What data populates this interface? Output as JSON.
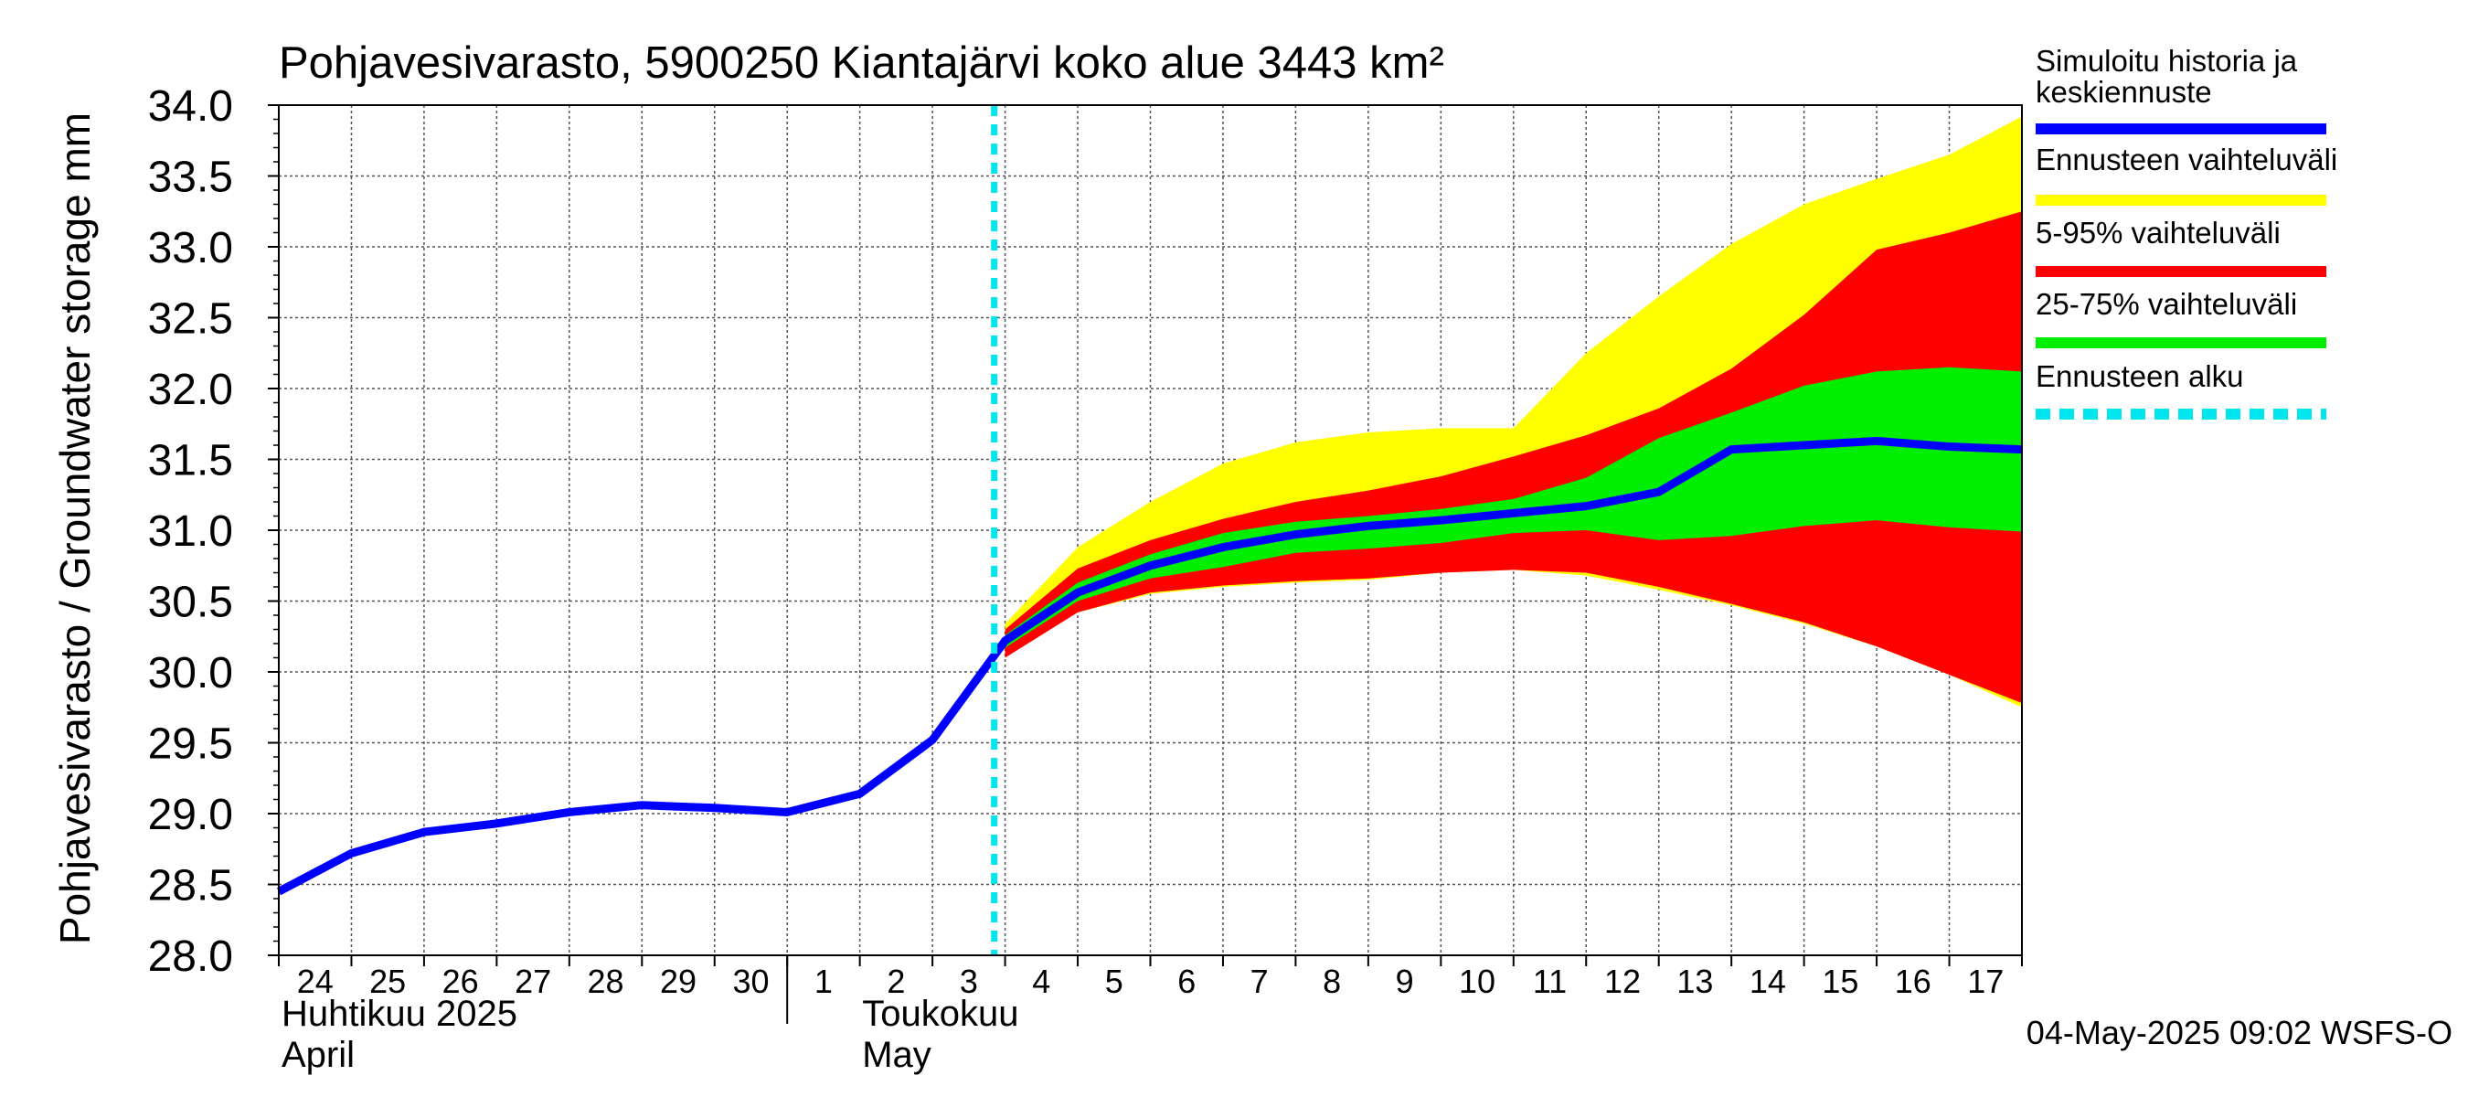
{
  "chart_data": {
    "type": "area",
    "title": "Pohjavesivarasto, 5900250 Kiantajärvi koko alue 3443 km²",
    "ylabel": "Pohjavesivarasto / Groundwater storage   mm",
    "ylim": [
      28.0,
      34.0
    ],
    "y_ticks": [
      "28.0",
      "28.5",
      "29.0",
      "29.5",
      "30.0",
      "30.5",
      "31.0",
      "31.5",
      "32.0",
      "32.5",
      "33.0",
      "33.5",
      "34.0"
    ],
    "grid": true,
    "x_day_labels": [
      "24",
      "25",
      "26",
      "27",
      "28",
      "29",
      "30",
      "1",
      "2",
      "3",
      "4",
      "5",
      "6",
      "7",
      "8",
      "9",
      "10",
      "11",
      "12",
      "13",
      "14",
      "15",
      "16",
      "17"
    ],
    "month_labels": [
      {
        "fi": "Huhtikuu  2025",
        "en": "April"
      },
      {
        "fi": "Toukokuu",
        "en": "May"
      }
    ],
    "x_dates": [
      "2025-04-24",
      "2025-04-25",
      "2025-04-26",
      "2025-04-27",
      "2025-04-28",
      "2025-04-29",
      "2025-04-30",
      "2025-05-01",
      "2025-05-02",
      "2025-05-03",
      "2025-05-04",
      "2025-05-05",
      "2025-05-06",
      "2025-05-07",
      "2025-05-08",
      "2025-05-09",
      "2025-05-10",
      "2025-05-11",
      "2025-05-12",
      "2025-05-13",
      "2025-05-14",
      "2025-05-15",
      "2025-05-16",
      "2025-05-17",
      "2025-05-18"
    ],
    "forecast_start": "2025-05-04",
    "history": {
      "x": [
        "2025-04-24",
        "2025-04-25",
        "2025-04-26",
        "2025-04-27",
        "2025-04-28",
        "2025-04-29",
        "2025-04-30",
        "2025-05-01",
        "2025-05-02",
        "2025-05-03",
        "2025-05-04"
      ],
      "y": [
        28.45,
        28.72,
        28.87,
        28.93,
        29.01,
        29.06,
        29.04,
        29.01,
        29.14,
        29.52,
        30.22
      ]
    },
    "forecast_x": [
      "2025-05-04",
      "2025-05-05",
      "2025-05-06",
      "2025-05-07",
      "2025-05-08",
      "2025-05-09",
      "2025-05-10",
      "2025-05-11",
      "2025-05-12",
      "2025-05-13",
      "2025-05-14",
      "2025-05-15",
      "2025-05-16",
      "2025-05-17",
      "2025-05-18"
    ],
    "bands": [
      {
        "name": "Ennusteen vaihteluväli",
        "color": "#ffff00",
        "lower": [
          30.15,
          30.42,
          30.55,
          30.6,
          30.63,
          30.65,
          30.7,
          30.72,
          30.68,
          30.58,
          30.47,
          30.34,
          30.18,
          29.98,
          29.75
        ],
        "upper": [
          30.34,
          30.88,
          31.2,
          31.47,
          31.62,
          31.69,
          31.72,
          31.72,
          32.25,
          32.65,
          33.02,
          33.3,
          33.48,
          33.65,
          33.92
        ]
      },
      {
        "name": "5-95% vaihteluväli",
        "color": "#ff0000",
        "lower": [
          30.1,
          30.42,
          30.56,
          30.61,
          30.64,
          30.66,
          30.7,
          30.72,
          30.7,
          30.6,
          30.48,
          30.35,
          30.18,
          29.98,
          29.78
        ],
        "upper": [
          30.3,
          30.73,
          30.93,
          31.08,
          31.2,
          31.28,
          31.38,
          31.52,
          31.67,
          31.86,
          32.14,
          32.52,
          32.98,
          33.1,
          33.25
        ]
      },
      {
        "name": "25-75% vaihteluväli",
        "color": "#00ee00",
        "lower": [
          30.17,
          30.5,
          30.66,
          30.74,
          30.84,
          30.87,
          30.91,
          30.98,
          31.0,
          30.93,
          30.96,
          31.03,
          31.07,
          31.02,
          30.99
        ],
        "upper": [
          30.26,
          30.63,
          30.83,
          30.98,
          31.06,
          31.1,
          31.15,
          31.22,
          31.37,
          31.65,
          31.83,
          32.02,
          32.12,
          32.15,
          32.12
        ]
      }
    ],
    "forecast_mean": [
      30.22,
      30.56,
      30.75,
      30.88,
      30.97,
      31.03,
      31.07,
      31.12,
      31.17,
      31.27,
      31.57,
      31.6,
      31.63,
      31.59,
      31.57
    ],
    "legend_position": "right",
    "legend": [
      {
        "label": "Simuloitu historia ja\nkeskiennuste",
        "color": "#0000ff",
        "style": "solid"
      },
      {
        "label": "Ennusteen vaihteluväli",
        "color": "#ffff00",
        "style": "solid"
      },
      {
        "label": "5-95% vaihteluväli",
        "color": "#ff0000",
        "style": "solid"
      },
      {
        "label": "25-75% vaihteluväli",
        "color": "#00ee00",
        "style": "solid"
      },
      {
        "label": "Ennusteen alku",
        "color": "#00e5ee",
        "style": "dashed"
      }
    ],
    "footer": "04-May-2025 09:02 WSFS-O"
  }
}
